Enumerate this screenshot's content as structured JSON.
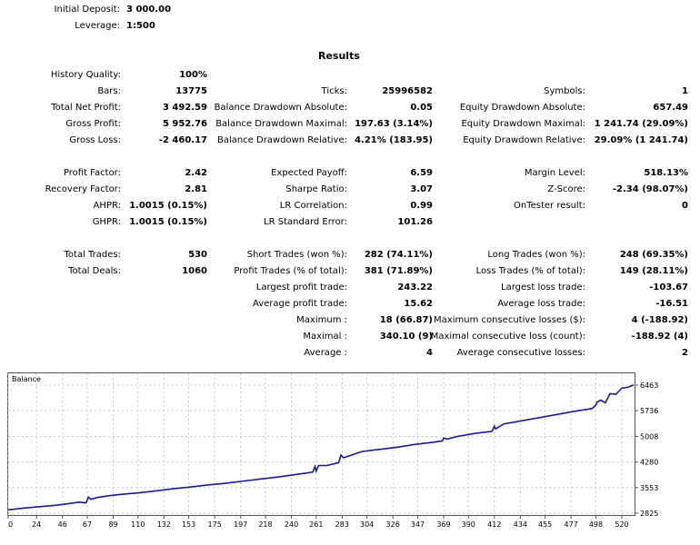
{
  "header": {
    "initial_deposit_label": "Initial Deposit:",
    "initial_deposit_value": "3 000.00",
    "leverage_label": "Leverage:",
    "leverage_value": "1:500"
  },
  "results_title": "Results",
  "history_quality": {
    "label": "History Quality:",
    "value": "100%"
  },
  "rows": [
    [
      {
        "label": "Bars:",
        "value": "13775"
      },
      {
        "label": "Ticks:",
        "value": "25996582"
      },
      {
        "label": "Symbols:",
        "value": "1"
      }
    ],
    [
      {
        "label": "Total Net Profit:",
        "value": "3 492.59"
      },
      {
        "label": "Balance Drawdown Absolute:",
        "value": "0.05"
      },
      {
        "label": "Equity Drawdown Absolute:",
        "value": "657.49"
      }
    ],
    [
      {
        "label": "Gross Profit:",
        "value": "5 952.76"
      },
      {
        "label": "Balance Drawdown Maximal:",
        "value": "197.63 (3.14%)"
      },
      {
        "label": "Equity Drawdown Maximal:",
        "value": "1 241.74 (29.09%)"
      }
    ],
    [
      {
        "label": "Gross Loss:",
        "value": "-2 460.17"
      },
      {
        "label": "Balance Drawdown Relative:",
        "value": "4.21% (183.95)"
      },
      {
        "label": "Equity Drawdown Relative:",
        "value": "29.09% (1 241.74)"
      }
    ],
    null,
    [
      {
        "label": "Profit Factor:",
        "value": "2.42"
      },
      {
        "label": "Expected Payoff:",
        "value": "6.59"
      },
      {
        "label": "Margin Level:",
        "value": "518.13%"
      }
    ],
    [
      {
        "label": "Recovery Factor:",
        "value": "2.81"
      },
      {
        "label": "Sharpe Ratio:",
        "value": "3.07"
      },
      {
        "label": "Z-Score:",
        "value": "-2.34 (98.07%)"
      }
    ],
    [
      {
        "label": "AHPR:",
        "value": "1.0015 (0.15%)"
      },
      {
        "label": "LR Correlation:",
        "value": "0.99"
      },
      {
        "label": "OnTester result:",
        "value": "0"
      }
    ],
    [
      {
        "label": "GHPR:",
        "value": "1.0015 (0.15%)"
      },
      {
        "label": "LR Standard Error:",
        "value": "101.26"
      },
      null
    ],
    null,
    [
      {
        "label": "Total Trades:",
        "value": "530"
      },
      {
        "label": "Short Trades (won %):",
        "value": "282 (74.11%)"
      },
      {
        "label": "Long Trades (won %):",
        "value": "248 (69.35%)"
      }
    ],
    [
      {
        "label": "Total Deals:",
        "value": "1060"
      },
      {
        "label": "Profit Trades (% of total):",
        "value": "381 (71.89%)"
      },
      {
        "label": "Loss Trades (% of total):",
        "value": "149 (28.11%)"
      }
    ],
    [
      null,
      {
        "label": "Largest profit trade:",
        "value": "243.22"
      },
      {
        "label": "Largest loss trade:",
        "value": "-103.67"
      }
    ],
    [
      null,
      {
        "label": "Average profit trade:",
        "value": "15.62"
      },
      {
        "label": "Average loss trade:",
        "value": "-16.51"
      }
    ],
    [
      null,
      {
        "label": "Maximum :",
        "value": "18 (66.87)"
      },
      {
        "label": "Maximum consecutive losses ($):",
        "value": "4 (-188.92)"
      }
    ],
    [
      null,
      {
        "label": "Maximal :",
        "value": "340.10 (9)"
      },
      {
        "label": "Maximal consecutive loss (count):",
        "value": "-188.92 (4)"
      }
    ],
    [
      null,
      {
        "label": "Average :",
        "value": "4"
      },
      {
        "label": "Average consecutive losses:",
        "value": "2"
      }
    ]
  ],
  "chart_data": {
    "type": "line",
    "title": "Balance",
    "xlabel": "",
    "ylabel": "",
    "x_ticks": [
      0,
      24,
      46,
      67,
      89,
      110,
      132,
      153,
      175,
      197,
      218,
      240,
      261,
      283,
      304,
      326,
      347,
      369,
      390,
      412,
      434,
      455,
      477,
      498,
      520
    ],
    "y_ticks": [
      2825,
      3553,
      4280,
      5008,
      5736,
      6463
    ],
    "xlim": [
      0,
      530
    ],
    "ylim": [
      2825,
      6463
    ],
    "grid": true,
    "line_color": "#1a1aa0",
    "x": [
      0,
      10,
      20,
      30,
      40,
      50,
      60,
      66,
      68,
      70,
      75,
      85,
      95,
      110,
      125,
      140,
      155,
      170,
      185,
      200,
      215,
      230,
      245,
      258,
      260,
      261,
      263,
      270,
      280,
      282,
      284,
      300,
      315,
      330,
      345,
      360,
      368,
      369,
      372,
      380,
      395,
      410,
      412,
      413,
      420,
      435,
      450,
      465,
      480,
      495,
      498,
      499,
      502,
      506,
      510,
      515,
      520,
      525,
      530
    ],
    "y": [
      2920,
      2960,
      2990,
      3020,
      3050,
      3090,
      3140,
      3120,
      3280,
      3220,
      3270,
      3320,
      3360,
      3400,
      3460,
      3520,
      3570,
      3630,
      3680,
      3740,
      3800,
      3860,
      3930,
      3990,
      4150,
      4020,
      4180,
      4180,
      4260,
      4480,
      4400,
      4580,
      4640,
      4700,
      4780,
      4840,
      4880,
      4960,
      4930,
      5000,
      5090,
      5150,
      5300,
      5220,
      5360,
      5450,
      5540,
      5630,
      5720,
      5800,
      5900,
      5980,
      6040,
      5960,
      6220,
      6200,
      6380,
      6400,
      6470
    ]
  }
}
